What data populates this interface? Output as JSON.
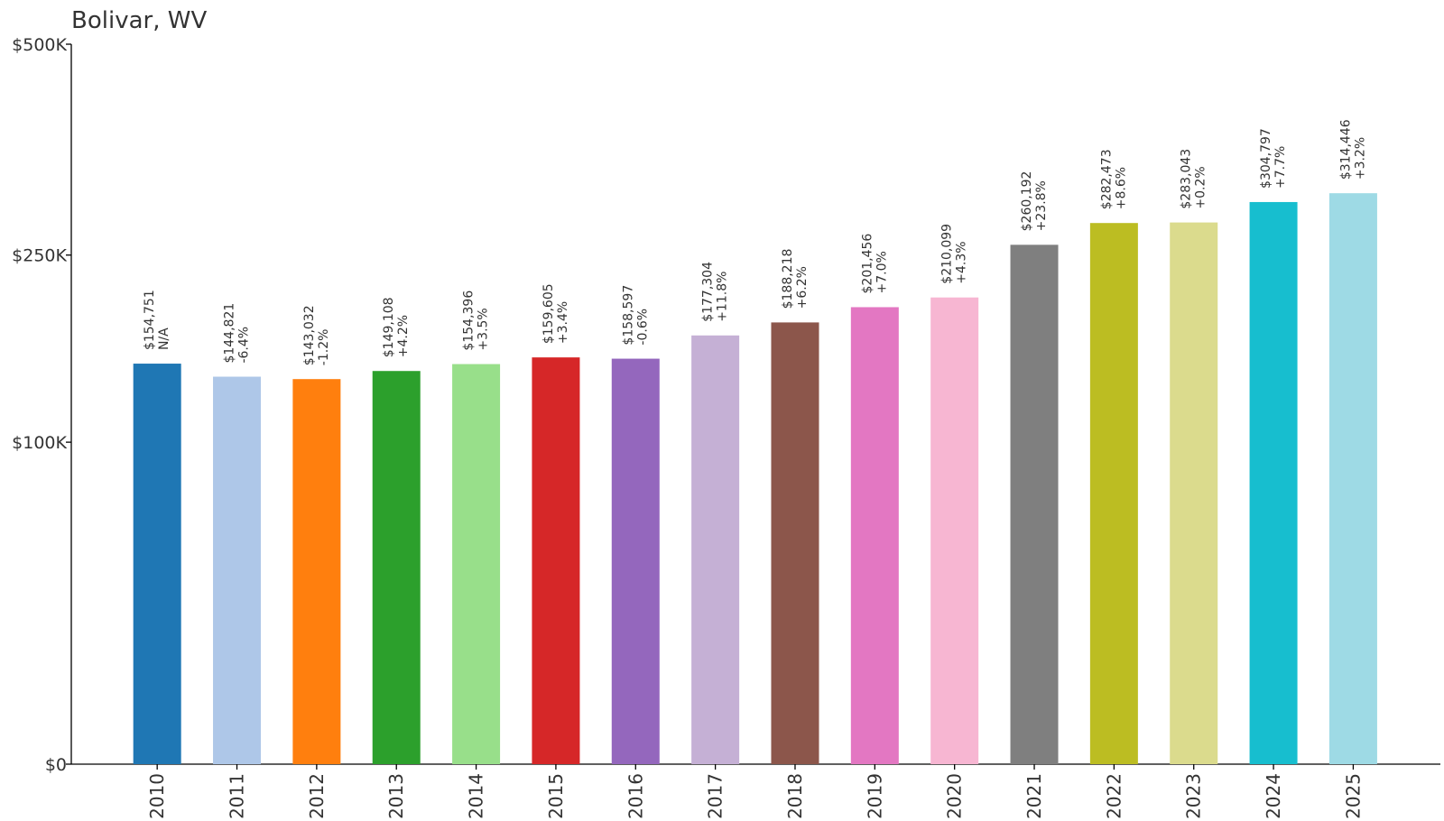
{
  "chart_data": {
    "type": "bar",
    "title": "Bolivar, WV",
    "xlabel": "",
    "ylabel": "",
    "ylim": [
      0,
      500000
    ],
    "y_scale": "non-linear (sqrt-like)",
    "y_ticks": [
      {
        "value": 0,
        "label": "$0"
      },
      {
        "value": 100000,
        "label": "$100K"
      },
      {
        "value": 250000,
        "label": "$250K"
      },
      {
        "value": 500000,
        "label": "$500K"
      }
    ],
    "grid": false,
    "legend": "none",
    "categories": [
      "2010",
      "2011",
      "2012",
      "2013",
      "2014",
      "2015",
      "2016",
      "2017",
      "2018",
      "2019",
      "2020",
      "2021",
      "2022",
      "2023",
      "2024",
      "2025"
    ],
    "values": [
      154751,
      144821,
      143032,
      149108,
      154396,
      159605,
      158597,
      177304,
      188218,
      201456,
      210099,
      260192,
      282473,
      283043,
      304797,
      314446
    ],
    "value_labels": [
      "$154,751",
      "$144,821",
      "$143,032",
      "$149,108",
      "$154,396",
      "$159,605",
      "$158,597",
      "$177,304",
      "$188,218",
      "$201,456",
      "$210,099",
      "$260,192",
      "$282,473",
      "$283,043",
      "$304,797",
      "$314,446"
    ],
    "change_labels": [
      "N/A",
      "-6.4%",
      "-1.2%",
      "+4.2%",
      "+3.5%",
      "+3.4%",
      "-0.6%",
      "+11.8%",
      "+6.2%",
      "+7.0%",
      "+4.3%",
      "+23.8%",
      "+8.6%",
      "+0.2%",
      "+7.7%",
      "+3.2%"
    ],
    "colors": [
      "#1f77b4",
      "#aec7e8",
      "#ff7f0e",
      "#2ca02c",
      "#98df8a",
      "#d62728",
      "#9467bd",
      "#c5b0d5",
      "#8c564b",
      "#e377c2",
      "#f7b6d2",
      "#7f7f7f",
      "#bcbd22",
      "#dbdb8d",
      "#17becf",
      "#9edae5"
    ]
  }
}
